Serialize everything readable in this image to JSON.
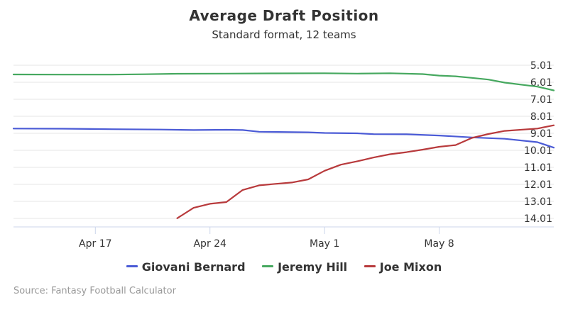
{
  "chart_data": {
    "type": "line",
    "title": "Average Draft Position",
    "subtitle": "Standard format, 12 teams",
    "xlabel": "",
    "ylabel": "",
    "x_range": [
      "2017-04-12",
      "2017-05-15"
    ],
    "x_ticks": [
      {
        "date": "2017-04-17",
        "label": "Apr 17"
      },
      {
        "date": "2017-04-24",
        "label": "Apr 24"
      },
      {
        "date": "2017-05-01",
        "label": "May 1"
      },
      {
        "date": "2017-05-08",
        "label": "May 8"
      }
    ],
    "y_ticks": [
      5.01,
      6.01,
      7.01,
      8.01,
      9.01,
      10.01,
      11.01,
      12.01,
      13.01,
      14.01
    ],
    "y_axis_side": "right",
    "y_reversed": true,
    "ylim": [
      4.51,
      14.51
    ],
    "grid": "horizontal",
    "legend_position": "bottom",
    "series": [
      {
        "name": "Giovani Bernard",
        "color": "#4b5bd6",
        "points": [
          [
            "2017-04-12",
            8.73
          ],
          [
            "2017-04-15",
            8.74
          ],
          [
            "2017-04-18",
            8.77
          ],
          [
            "2017-04-21",
            8.79
          ],
          [
            "2017-04-23",
            8.82
          ],
          [
            "2017-04-25",
            8.8
          ],
          [
            "2017-04-26",
            8.82
          ],
          [
            "2017-04-27",
            8.92
          ],
          [
            "2017-04-30",
            8.95
          ],
          [
            "2017-05-01",
            8.99
          ],
          [
            "2017-05-03",
            9.01
          ],
          [
            "2017-05-04",
            9.06
          ],
          [
            "2017-05-06",
            9.07
          ],
          [
            "2017-05-08",
            9.14
          ],
          [
            "2017-05-10",
            9.25
          ],
          [
            "2017-05-12",
            9.33
          ],
          [
            "2017-05-14",
            9.53
          ],
          [
            "2017-05-15",
            9.85
          ]
        ]
      },
      {
        "name": "Jeremy Hill",
        "color": "#46a85f",
        "points": [
          [
            "2017-04-12",
            5.55
          ],
          [
            "2017-04-15",
            5.56
          ],
          [
            "2017-04-18",
            5.56
          ],
          [
            "2017-04-20",
            5.54
          ],
          [
            "2017-04-22",
            5.51
          ],
          [
            "2017-04-25",
            5.5
          ],
          [
            "2017-04-28",
            5.49
          ],
          [
            "2017-05-01",
            5.48
          ],
          [
            "2017-05-03",
            5.5
          ],
          [
            "2017-05-05",
            5.48
          ],
          [
            "2017-05-07",
            5.53
          ],
          [
            "2017-05-08",
            5.62
          ],
          [
            "2017-05-09",
            5.66
          ],
          [
            "2017-05-10",
            5.75
          ],
          [
            "2017-05-11",
            5.85
          ],
          [
            "2017-05-12",
            6.03
          ],
          [
            "2017-05-14",
            6.27
          ],
          [
            "2017-05-15",
            6.49
          ]
        ]
      },
      {
        "name": "Joe Mixon",
        "color": "#b83a3c",
        "points": [
          [
            "2017-04-22",
            14.0
          ],
          [
            "2017-04-23",
            13.39
          ],
          [
            "2017-04-24",
            13.15
          ],
          [
            "2017-04-25",
            13.05
          ],
          [
            "2017-04-26",
            12.34
          ],
          [
            "2017-04-27",
            12.07
          ],
          [
            "2017-04-28",
            11.98
          ],
          [
            "2017-04-29",
            11.9
          ],
          [
            "2017-04-30",
            11.72
          ],
          [
            "2017-05-01",
            11.21
          ],
          [
            "2017-05-02",
            10.85
          ],
          [
            "2017-05-03",
            10.65
          ],
          [
            "2017-05-04",
            10.43
          ],
          [
            "2017-05-05",
            10.24
          ],
          [
            "2017-05-06",
            10.12
          ],
          [
            "2017-05-07",
            9.97
          ],
          [
            "2017-05-08",
            9.8
          ],
          [
            "2017-05-09",
            9.7
          ],
          [
            "2017-05-10",
            9.28
          ],
          [
            "2017-05-11",
            9.05
          ],
          [
            "2017-05-12",
            8.87
          ],
          [
            "2017-05-14",
            8.73
          ],
          [
            "2017-05-15",
            8.54
          ]
        ]
      }
    ]
  },
  "legend": {
    "items": [
      {
        "label": "Giovani Bernard",
        "color": "#4b5bd6"
      },
      {
        "label": "Jeremy Hill",
        "color": "#46a85f"
      },
      {
        "label": "Joe Mixon",
        "color": "#b83a3c"
      }
    ]
  },
  "credit": "Source: Fantasy Football Calculator"
}
